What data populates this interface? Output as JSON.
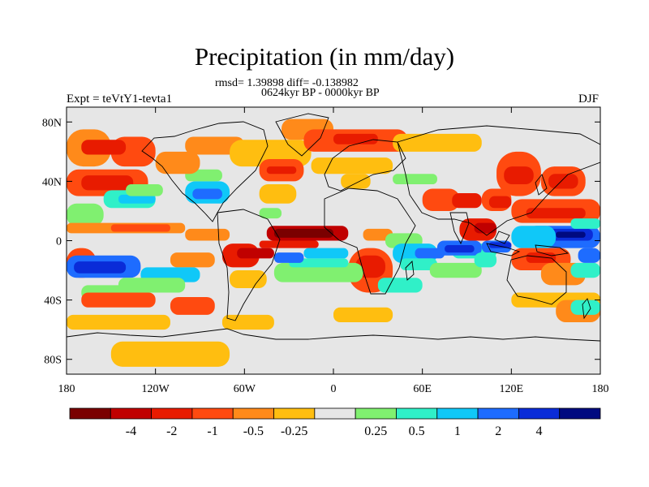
{
  "chart_data": {
    "type": "heatmap",
    "title": "Precipitation (in mm/day)",
    "stats": "rmsd= 1.39898 diff= -0.138982",
    "subtitle": "0624kyr BP - 0000kyr BP",
    "left_label": "Expt = teVtY1-tevta1",
    "right_label": "DJF",
    "x_axis": {
      "range": [
        -180,
        180
      ],
      "ticks": [
        {
          "value": -180,
          "label": "180"
        },
        {
          "value": -120,
          "label": "120W"
        },
        {
          "value": -60,
          "label": "60W"
        },
        {
          "value": 0,
          "label": "0"
        },
        {
          "value": 60,
          "label": "60E"
        },
        {
          "value": 120,
          "label": "120E"
        },
        {
          "value": 180,
          "label": "180"
        }
      ]
    },
    "y_axis": {
      "range": [
        -90,
        90
      ],
      "ticks": [
        {
          "value": 80,
          "label": "80N"
        },
        {
          "value": 40,
          "label": "40N"
        },
        {
          "value": 0,
          "label": "0"
        },
        {
          "value": -40,
          "label": "40S"
        },
        {
          "value": -80,
          "label": "80S"
        }
      ]
    },
    "colorbar": {
      "colors": [
        "#7a0000",
        "#c00000",
        "#e81b00",
        "#ff4a10",
        "#ff8a1a",
        "#ffbe10",
        "#e6e6e6",
        "#80f070",
        "#30f0c8",
        "#10c8f8",
        "#1e6cff",
        "#0a2cd8",
        "#000a80"
      ],
      "labels": [
        "-4",
        "-2",
        "-1",
        "-0.5",
        "-0.25",
        "0.25",
        "0.5",
        "1",
        "2",
        "4"
      ]
    },
    "regions": [
      {
        "lon": [
          -180,
          -150
        ],
        "lat": [
          50,
          75
        ],
        "level": 4
      },
      {
        "lon": [
          -150,
          -120
        ],
        "lat": [
          50,
          70
        ],
        "level": 3
      },
      {
        "lon": [
          -170,
          -140
        ],
        "lat": [
          58,
          68
        ],
        "level": 2
      },
      {
        "lon": [
          -180,
          -125
        ],
        "lat": [
          30,
          48
        ],
        "level": 3
      },
      {
        "lon": [
          -170,
          -135
        ],
        "lat": [
          34,
          44
        ],
        "level": 2
      },
      {
        "lon": [
          -155,
          -120
        ],
        "lat": [
          22,
          34
        ],
        "level": 8
      },
      {
        "lon": [
          -145,
          -120
        ],
        "lat": [
          25,
          31
        ],
        "level": 9
      },
      {
        "lon": [
          -180,
          -155
        ],
        "lat": [
          10,
          25
        ],
        "level": 7
      },
      {
        "lon": [
          -140,
          -115
        ],
        "lat": [
          30,
          38
        ],
        "level": 7
      },
      {
        "lon": [
          -100,
          -70
        ],
        "lat": [
          25,
          40
        ],
        "level": 9
      },
      {
        "lon": [
          -95,
          -75
        ],
        "lat": [
          28,
          35
        ],
        "level": 10
      },
      {
        "lon": [
          -100,
          -75
        ],
        "lat": [
          40,
          48
        ],
        "level": 7
      },
      {
        "lon": [
          -120,
          -90
        ],
        "lat": [
          45,
          60
        ],
        "level": 4
      },
      {
        "lon": [
          -100,
          -60
        ],
        "lat": [
          58,
          70
        ],
        "level": 4
      },
      {
        "lon": [
          -70,
          -15
        ],
        "lat": [
          50,
          68
        ],
        "level": 5
      },
      {
        "lon": [
          -50,
          -20
        ],
        "lat": [
          40,
          55
        ],
        "level": 3
      },
      {
        "lon": [
          -45,
          -25
        ],
        "lat": [
          45,
          50
        ],
        "level": 2
      },
      {
        "lon": [
          -50,
          -25
        ],
        "lat": [
          25,
          38
        ],
        "level": 5
      },
      {
        "lon": [
          -50,
          -35
        ],
        "lat": [
          15,
          22
        ],
        "level": 7
      },
      {
        "lon": [
          -35,
          0
        ],
        "lat": [
          68,
          82
        ],
        "level": 4
      },
      {
        "lon": [
          -20,
          50
        ],
        "lat": [
          60,
          75
        ],
        "level": 3
      },
      {
        "lon": [
          0,
          30
        ],
        "lat": [
          65,
          72
        ],
        "level": 2
      },
      {
        "lon": [
          40,
          100
        ],
        "lat": [
          60,
          72
        ],
        "level": 5
      },
      {
        "lon": [
          -15,
          40
        ],
        "lat": [
          45,
          56
        ],
        "level": 5
      },
      {
        "lon": [
          5,
          25
        ],
        "lat": [
          35,
          45
        ],
        "level": 5
      },
      {
        "lon": [
          40,
          70
        ],
        "lat": [
          38,
          45
        ],
        "level": 7
      },
      {
        "lon": [
          -180,
          -100
        ],
        "lat": [
          5,
          12
        ],
        "level": 4
      },
      {
        "lon": [
          -150,
          -110
        ],
        "lat": [
          6,
          11
        ],
        "level": 3
      },
      {
        "lon": [
          -100,
          -70
        ],
        "lat": [
          0,
          8
        ],
        "level": 4
      },
      {
        "lon": [
          -75,
          -50
        ],
        "lat": [
          -18,
          -2
        ],
        "level": 2
      },
      {
        "lon": [
          -65,
          -40
        ],
        "lat": [
          -12,
          -5
        ],
        "level": 1
      },
      {
        "lon": [
          -45,
          10
        ],
        "lat": [
          0,
          10
        ],
        "level": 1
      },
      {
        "lon": [
          -40,
          0
        ],
        "lat": [
          2,
          8
        ],
        "level": 0
      },
      {
        "lon": [
          -50,
          -10
        ],
        "lat": [
          -5,
          0
        ],
        "level": 2
      },
      {
        "lon": [
          -180,
          -160
        ],
        "lat": [
          -25,
          -5
        ],
        "level": 3
      },
      {
        "lon": [
          -110,
          -80
        ],
        "lat": [
          -18,
          -8
        ],
        "level": 4
      },
      {
        "lon": [
          -70,
          -45
        ],
        "lat": [
          -32,
          -20
        ],
        "level": 5
      },
      {
        "lon": [
          10,
          40
        ],
        "lat": [
          -35,
          -5
        ],
        "level": 3
      },
      {
        "lon": [
          15,
          35
        ],
        "lat": [
          -25,
          -10
        ],
        "level": 2
      },
      {
        "lon": [
          20,
          40
        ],
        "lat": [
          0,
          8
        ],
        "level": 4
      },
      {
        "lon": [
          -40,
          20
        ],
        "lat": [
          -28,
          -15
        ],
        "level": 7
      },
      {
        "lon": [
          -30,
          10
        ],
        "lat": [
          -18,
          -12
        ],
        "level": 8
      },
      {
        "lon": [
          -20,
          10
        ],
        "lat": [
          -12,
          -5
        ],
        "level": 9
      },
      {
        "lon": [
          -40,
          -20
        ],
        "lat": [
          -15,
          -8
        ],
        "level": 10
      },
      {
        "lon": [
          -180,
          -130
        ],
        "lat": [
          -25,
          -10
        ],
        "level": 10
      },
      {
        "lon": [
          -175,
          -140
        ],
        "lat": [
          -22,
          -14
        ],
        "level": 11
      },
      {
        "lon": [
          -130,
          -90
        ],
        "lat": [
          -28,
          -18
        ],
        "level": 9
      },
      {
        "lon": [
          -145,
          -100
        ],
        "lat": [
          -35,
          -25
        ],
        "level": 7
      },
      {
        "lon": [
          -170,
          -130
        ],
        "lat": [
          -40,
          -30
        ],
        "level": 7
      },
      {
        "lon": [
          -170,
          -120
        ],
        "lat": [
          -45,
          -35
        ],
        "level": 3
      },
      {
        "lon": [
          -110,
          -80
        ],
        "lat": [
          -50,
          -38
        ],
        "level": 3
      },
      {
        "lon": [
          -180,
          -110
        ],
        "lat": [
          -60,
          -50
        ],
        "level": 5
      },
      {
        "lon": [
          -75,
          -40
        ],
        "lat": [
          -60,
          -50
        ],
        "level": 5
      },
      {
        "lon": [
          35,
          60
        ],
        "lat": [
          -5,
          5
        ],
        "level": 7
      },
      {
        "lon": [
          40,
          70
        ],
        "lat": [
          -15,
          -2
        ],
        "level": 9
      },
      {
        "lon": [
          55,
          75
        ],
        "lat": [
          -12,
          -5
        ],
        "level": 10
      },
      {
        "lon": [
          45,
          70
        ],
        "lat": [
          -20,
          -12
        ],
        "level": 8
      },
      {
        "lon": [
          30,
          60
        ],
        "lat": [
          -35,
          -25
        ],
        "level": 8
      },
      {
        "lon": [
          65,
          100
        ],
        "lat": [
          -25,
          -15
        ],
        "level": 7
      },
      {
        "lon": [
          80,
          110
        ],
        "lat": [
          -12,
          -2
        ],
        "level": 8
      },
      {
        "lon": [
          70,
          100
        ],
        "lat": [
          -10,
          0
        ],
        "level": 10
      },
      {
        "lon": [
          75,
          95
        ],
        "lat": [
          -8,
          -3
        ],
        "level": 11
      },
      {
        "lon": [
          60,
          85
        ],
        "lat": [
          20,
          35
        ],
        "level": 3
      },
      {
        "lon": [
          80,
          100
        ],
        "lat": [
          22,
          32
        ],
        "level": 2
      },
      {
        "lon": [
          100,
          120
        ],
        "lat": [
          20,
          35
        ],
        "level": 3
      },
      {
        "lon": [
          105,
          120
        ],
        "lat": [
          22,
          30
        ],
        "level": 2
      },
      {
        "lon": [
          85,
          110
        ],
        "lat": [
          0,
          15
        ],
        "level": 2
      },
      {
        "lon": [
          95,
          110
        ],
        "lat": [
          5,
          12
        ],
        "level": 1
      },
      {
        "lon": [
          110,
          140
        ],
        "lat": [
          30,
          60
        ],
        "level": 3
      },
      {
        "lon": [
          115,
          135
        ],
        "lat": [
          38,
          50
        ],
        "level": 2
      },
      {
        "lon": [
          140,
          170
        ],
        "lat": [
          30,
          50
        ],
        "level": 3
      },
      {
        "lon": [
          145,
          165
        ],
        "lat": [
          35,
          45
        ],
        "level": 2
      },
      {
        "lon": [
          120,
          180
        ],
        "lat": [
          12,
          28
        ],
        "level": 3
      },
      {
        "lon": [
          130,
          170
        ],
        "lat": [
          15,
          22
        ],
        "level": 2
      },
      {
        "lon": [
          130,
          180
        ],
        "lat": [
          -5,
          10
        ],
        "level": 10
      },
      {
        "lon": [
          140,
          175
        ],
        "lat": [
          0,
          8
        ],
        "level": 11
      },
      {
        "lon": [
          150,
          170
        ],
        "lat": [
          2,
          6
        ],
        "level": 12
      },
      {
        "lon": [
          120,
          150
        ],
        "lat": [
          -5,
          10
        ],
        "level": 9
      },
      {
        "lon": [
          160,
          180
        ],
        "lat": [
          8,
          15
        ],
        "level": 8
      },
      {
        "lon": [
          100,
          120
        ],
        "lat": [
          -8,
          0
        ],
        "level": 10
      },
      {
        "lon": [
          105,
          120
        ],
        "lat": [
          -5,
          -1
        ],
        "level": 11
      },
      {
        "lon": [
          95,
          110
        ],
        "lat": [
          -18,
          -8
        ],
        "level": 8
      },
      {
        "lon": [
          120,
          160
        ],
        "lat": [
          -20,
          -5
        ],
        "level": 3
      },
      {
        "lon": [
          130,
          150
        ],
        "lat": [
          -15,
          -8
        ],
        "level": 2
      },
      {
        "lon": [
          140,
          170
        ],
        "lat": [
          -30,
          -15
        ],
        "level": 4
      },
      {
        "lon": [
          160,
          180
        ],
        "lat": [
          -25,
          -15
        ],
        "level": 8
      },
      {
        "lon": [
          165,
          180
        ],
        "lat": [
          -15,
          -5
        ],
        "level": 10
      },
      {
        "lon": [
          120,
          180
        ],
        "lat": [
          -45,
          -35
        ],
        "level": 5
      },
      {
        "lon": [
          0,
          40
        ],
        "lat": [
          -55,
          -45
        ],
        "level": 5
      },
      {
        "lon": [
          150,
          180
        ],
        "lat": [
          -55,
          -40
        ],
        "level": 4
      },
      {
        "lon": [
          160,
          180
        ],
        "lat": [
          -50,
          -40
        ],
        "level": 8
      },
      {
        "lon": [
          -150,
          -70
        ],
        "lat": [
          -85,
          -68
        ],
        "level": 5
      }
    ]
  }
}
